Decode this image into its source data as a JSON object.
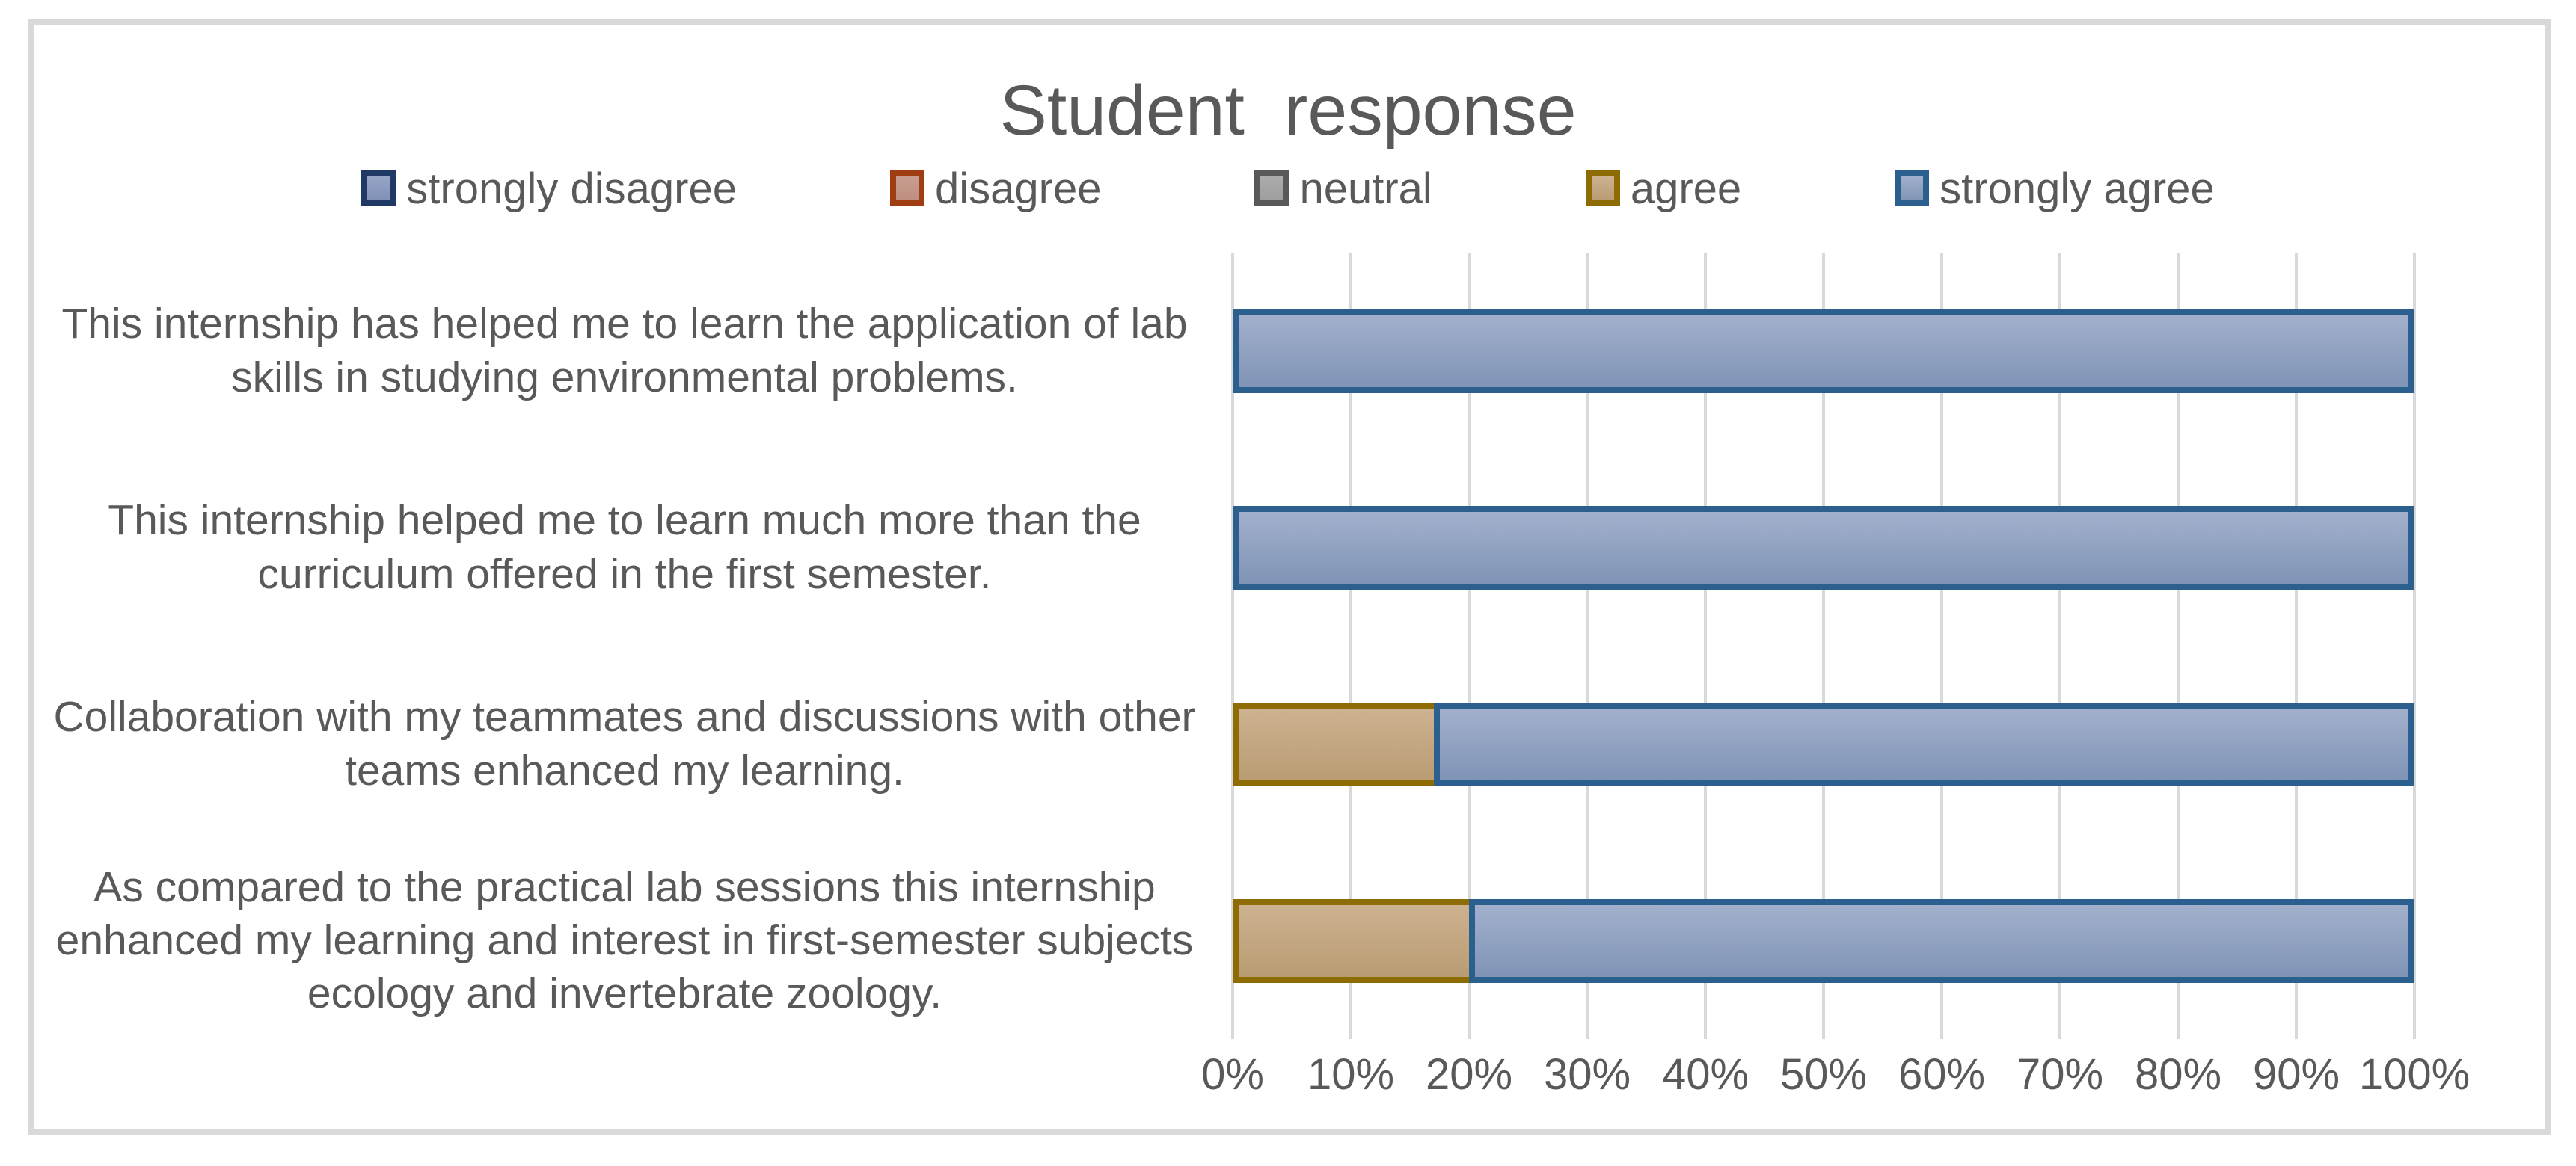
{
  "chart_data": {
    "type": "bar",
    "orientation": "horizontal",
    "stacked": true,
    "title": "Student  response",
    "categories": [
      "This internship has helped me to learn the application of lab skills in studying environmental problems.",
      "This internship helped me to learn much more than the curriculum offered in the first semester.",
      "Collaboration with my teammates and discussions with other teams enhanced my learning.",
      "As compared to the practical lab sessions this internship enhanced my learning and interest in first-semester subjects ecology and invertebrate zoology."
    ],
    "series": [
      {
        "name": "strongly disagree",
        "values": [
          0,
          0,
          0,
          0
        ]
      },
      {
        "name": "disagree",
        "values": [
          0,
          0,
          0,
          0
        ]
      },
      {
        "name": "neutral",
        "values": [
          0,
          0,
          0,
          0
        ]
      },
      {
        "name": "agree",
        "values": [
          0,
          0,
          17,
          20
        ]
      },
      {
        "name": "strongly agree",
        "values": [
          100,
          100,
          83,
          80
        ]
      }
    ],
    "x_tick_labels": [
      "0%",
      "10%",
      "20%",
      "30%",
      "40%",
      "50%",
      "60%",
      "70%",
      "80%",
      "90%",
      "100%"
    ],
    "xlim": [
      0,
      100
    ],
    "grid": true,
    "legend_position": "top"
  },
  "colors": {
    "text": "#595959",
    "gridline": "#D9D9D9",
    "frame_border": "#D9D9D9",
    "background": "#FFFFFF",
    "series": {
      "strongly disagree": {
        "border": "#1F3864",
        "fill_top": "#97A5C6",
        "fill_bottom": "#8190B6"
      },
      "disagree": {
        "border": "#A03D12",
        "fill_top": "#C99E90",
        "fill_bottom": "#BE8E7F"
      },
      "neutral": {
        "border": "#595959",
        "fill_top": "#ACACAC",
        "fill_bottom": "#9E9E9E"
      },
      "agree": {
        "border": "#8E6C04",
        "fill_top": "#CDB290",
        "fill_bottom": "#B99C73"
      },
      "strongly agree": {
        "border": "#2A5F8E",
        "fill_top": "#A2B0CC",
        "fill_bottom": "#8094B6"
      }
    }
  }
}
